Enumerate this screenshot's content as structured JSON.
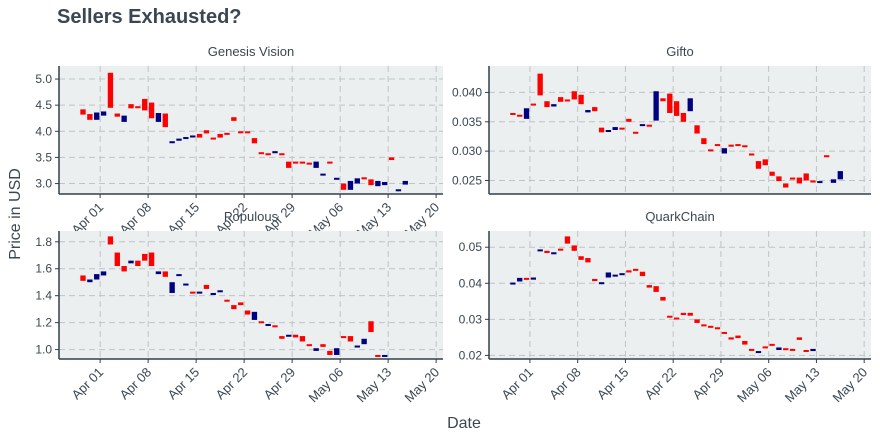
{
  "title": "Sellers Exhausted?",
  "xlabel": "Date",
  "ylabel": "Price in USD",
  "colors": {
    "panel_bg": "#ebeff0",
    "grid": "#bfc4c6",
    "axis": "#333f4b",
    "text": "#3a4752",
    "up": "#000080",
    "down": "#ff0000"
  },
  "chart_data": [
    {
      "type": "candlestick",
      "title": "Genesis Vision",
      "x_ticks": [
        "Apr 01",
        "Apr 08",
        "Apr 15",
        "Apr 22",
        "Apr 29",
        "May 06",
        "May 13",
        "May 20"
      ],
      "y_ticks": [
        "3.0",
        "3.5",
        "4.0",
        "4.5",
        "5.0"
      ],
      "ylim": [
        2.8,
        5.25
      ],
      "x_start": "2018-03-29",
      "candles": [
        [
          "2018-03-29",
          4.42,
          4.32
        ],
        [
          "2018-03-30",
          4.33,
          4.22
        ],
        [
          "2018-03-31",
          4.22,
          4.36
        ],
        [
          "2018-04-01",
          4.3,
          4.38
        ],
        [
          "2018-04-02",
          5.12,
          4.45
        ],
        [
          "2018-04-03",
          4.34,
          4.28
        ],
        [
          "2018-04-04",
          4.18,
          4.3
        ],
        [
          "2018-04-05",
          4.52,
          4.44
        ],
        [
          "2018-04-06",
          4.48,
          4.46
        ],
        [
          "2018-04-07",
          4.62,
          4.4
        ],
        [
          "2018-04-08",
          4.55,
          4.25
        ],
        [
          "2018-04-09",
          4.18,
          4.35
        ],
        [
          "2018-04-10",
          4.34,
          4.08
        ],
        [
          "2018-04-11",
          3.8,
          3.81
        ],
        [
          "2018-04-12",
          3.82,
          3.86
        ],
        [
          "2018-04-13",
          3.86,
          3.89
        ],
        [
          "2018-04-14",
          3.9,
          3.92
        ],
        [
          "2018-04-15",
          3.95,
          3.88
        ],
        [
          "2018-04-16",
          4.02,
          3.96
        ],
        [
          "2018-04-17",
          3.88,
          3.87
        ],
        [
          "2018-04-18",
          3.95,
          3.88
        ],
        [
          "2018-04-19",
          3.97,
          3.96
        ],
        [
          "2018-04-20",
          4.27,
          4.2
        ],
        [
          "2018-04-21",
          4.0,
          3.98
        ],
        [
          "2018-04-22",
          4.0,
          3.98
        ],
        [
          "2018-04-23",
          3.87,
          3.77
        ],
        [
          "2018-04-24",
          3.6,
          3.57
        ],
        [
          "2018-04-25",
          3.58,
          3.57
        ],
        [
          "2018-04-26",
          3.58,
          3.62
        ],
        [
          "2018-04-27",
          3.58,
          3.55
        ],
        [
          "2018-04-28",
          3.42,
          3.3
        ],
        [
          "2018-04-29",
          3.42,
          3.4
        ],
        [
          "2018-04-30",
          3.42,
          3.4
        ],
        [
          "2018-05-01",
          3.4,
          3.38
        ],
        [
          "2018-05-02",
          3.3,
          3.42
        ],
        [
          "2018-05-03",
          3.18,
          3.19
        ],
        [
          "2018-05-04",
          3.42,
          3.4
        ],
        [
          "2018-05-05",
          3.1,
          3.11
        ],
        [
          "2018-05-06",
          3.0,
          2.88
        ],
        [
          "2018-05-07",
          2.88,
          3.05
        ],
        [
          "2018-05-08",
          3.0,
          3.1
        ],
        [
          "2018-05-09",
          3.12,
          3.08
        ],
        [
          "2018-05-10",
          3.08,
          2.97
        ],
        [
          "2018-05-11",
          2.95,
          3.05
        ],
        [
          "2018-05-12",
          2.97,
          3.03
        ],
        [
          "2018-05-13",
          3.5,
          3.45
        ],
        [
          "2018-05-14",
          2.88,
          2.89
        ],
        [
          "2018-05-15",
          2.98,
          3.05
        ]
      ]
    },
    {
      "type": "candlestick",
      "title": "Gifto",
      "x_ticks": [],
      "y_ticks": [
        "0.025",
        "0.030",
        "0.035",
        "0.040"
      ],
      "ylim": [
        0.0227,
        0.0445
      ],
      "x_start": "2018-03-29",
      "candles": [
        [
          "2018-03-29",
          0.0365,
          0.0364
        ],
        [
          "2018-03-30",
          0.0362,
          0.036
        ],
        [
          "2018-03-31",
          0.0355,
          0.0373
        ],
        [
          "2018-04-01",
          0.0381,
          0.038
        ],
        [
          "2018-04-02",
          0.0432,
          0.0395
        ],
        [
          "2018-04-03",
          0.0385,
          0.0375
        ],
        [
          "2018-04-04",
          0.0376,
          0.038
        ],
        [
          "2018-04-05",
          0.0392,
          0.0384
        ],
        [
          "2018-04-06",
          0.0388,
          0.0386
        ],
        [
          "2018-04-07",
          0.0402,
          0.0388
        ],
        [
          "2018-04-08",
          0.0396,
          0.038
        ],
        [
          "2018-04-09",
          0.0366,
          0.037
        ],
        [
          "2018-04-10",
          0.0375,
          0.0368
        ],
        [
          "2018-04-11",
          0.034,
          0.0332
        ],
        [
          "2018-04-12",
          0.0335,
          0.0336
        ],
        [
          "2018-04-13",
          0.0336,
          0.0341
        ],
        [
          "2018-04-14",
          0.034,
          0.0338
        ],
        [
          "2018-04-15",
          0.0355,
          0.035
        ],
        [
          "2018-04-16",
          0.0333,
          0.033
        ],
        [
          "2018-04-17",
          0.0344,
          0.0346
        ],
        [
          "2018-04-18",
          0.0345,
          0.0343
        ],
        [
          "2018-04-19",
          0.0352,
          0.0402
        ],
        [
          "2018-04-20",
          0.039,
          0.0385
        ],
        [
          "2018-04-21",
          0.0398,
          0.0365
        ],
        [
          "2018-04-22",
          0.0385,
          0.036
        ],
        [
          "2018-04-23",
          0.0365,
          0.035
        ],
        [
          "2018-04-24",
          0.0368,
          0.039
        ],
        [
          "2018-04-25",
          0.0344,
          0.033
        ],
        [
          "2018-04-26",
          0.0322,
          0.0312
        ],
        [
          "2018-04-27",
          0.0303,
          0.0301
        ],
        [
          "2018-04-28",
          0.0312,
          0.0311
        ],
        [
          "2018-04-29",
          0.0296,
          0.0305
        ],
        [
          "2018-04-30",
          0.0311,
          0.031
        ],
        [
          "2018-05-01",
          0.0312,
          0.031
        ],
        [
          "2018-05-02",
          0.031,
          0.0307
        ],
        [
          "2018-05-03",
          0.0296,
          0.0295
        ],
        [
          "2018-05-04",
          0.0283,
          0.027
        ],
        [
          "2018-05-05",
          0.0286,
          0.0276
        ],
        [
          "2018-05-06",
          0.0265,
          0.0258
        ],
        [
          "2018-05-07",
          0.0257,
          0.0249
        ],
        [
          "2018-05-08",
          0.0245,
          0.0238
        ],
        [
          "2018-05-09",
          0.0255,
          0.0252
        ],
        [
          "2018-05-10",
          0.0255,
          0.0245
        ],
        [
          "2018-05-11",
          0.0262,
          0.025
        ],
        [
          "2018-05-12",
          0.025,
          0.0248
        ],
        [
          "2018-05-13",
          0.0248,
          0.0249
        ],
        [
          "2018-05-14",
          0.0293,
          0.0292
        ],
        [
          "2018-05-15",
          0.0246,
          0.0252
        ],
        [
          "2018-05-16",
          0.0252,
          0.0266
        ]
      ]
    },
    {
      "type": "candlestick",
      "title": "Populous",
      "x_ticks": [
        "Apr 01",
        "Apr 08",
        "Apr 15",
        "Apr 22",
        "Apr 29",
        "May 06",
        "May 13",
        "May 20"
      ],
      "y_ticks": [
        "1.0",
        "1.2",
        "1.4",
        "1.6",
        "1.8"
      ],
      "ylim": [
        0.93,
        1.88
      ],
      "x_start": "2018-03-29",
      "candles": [
        [
          "2018-03-29",
          1.55,
          1.51
        ],
        [
          "2018-03-30",
          1.5,
          1.52
        ],
        [
          "2018-03-31",
          1.52,
          1.56
        ],
        [
          "2018-04-01",
          1.55,
          1.58
        ],
        [
          "2018-04-02",
          1.84,
          1.78
        ],
        [
          "2018-04-03",
          1.72,
          1.62
        ],
        [
          "2018-04-04",
          1.62,
          1.58
        ],
        [
          "2018-04-05",
          1.64,
          1.66
        ],
        [
          "2018-04-06",
          1.66,
          1.62
        ],
        [
          "2018-04-07",
          1.71,
          1.66
        ],
        [
          "2018-04-08",
          1.72,
          1.62
        ],
        [
          "2018-04-09",
          1.56,
          1.58
        ],
        [
          "2018-04-10",
          1.58,
          1.54
        ],
        [
          "2018-04-11",
          1.42,
          1.5
        ],
        [
          "2018-04-12",
          1.55,
          1.56
        ],
        [
          "2018-04-13",
          1.48,
          1.49
        ],
        [
          "2018-04-14",
          1.43,
          1.42
        ],
        [
          "2018-04-15",
          1.42,
          1.43
        ],
        [
          "2018-04-16",
          1.48,
          1.45
        ],
        [
          "2018-04-17",
          1.41,
          1.42
        ],
        [
          "2018-04-18",
          1.43,
          1.44
        ],
        [
          "2018-04-19",
          1.37,
          1.36
        ],
        [
          "2018-04-20",
          1.33,
          1.3
        ],
        [
          "2018-04-21",
          1.35,
          1.33
        ],
        [
          "2018-04-22",
          1.29,
          1.26
        ],
        [
          "2018-04-23",
          1.22,
          1.28
        ],
        [
          "2018-04-24",
          1.21,
          1.2
        ],
        [
          "2018-04-25",
          1.18,
          1.19
        ],
        [
          "2018-04-26",
          1.18,
          1.17
        ],
        [
          "2018-04-27",
          1.1,
          1.08
        ],
        [
          "2018-04-28",
          1.1,
          1.11
        ],
        [
          "2018-04-29",
          1.11,
          1.09
        ],
        [
          "2018-04-30",
          1.1,
          1.06
        ],
        [
          "2018-05-01",
          1.04,
          1.03
        ],
        [
          "2018-05-02",
          0.99,
          1.01
        ],
        [
          "2018-05-03",
          1.04,
          1.02
        ],
        [
          "2018-05-04",
          0.99,
          0.96
        ],
        [
          "2018-05-05",
          0.96,
          1.01
        ],
        [
          "2018-05-06",
          1.1,
          1.09
        ],
        [
          "2018-05-07",
          1.1,
          1.06
        ],
        [
          "2018-05-08",
          1.02,
          1.03
        ],
        [
          "2018-05-09",
          1.04,
          1.08
        ],
        [
          "2018-05-10",
          1.21,
          1.13
        ],
        [
          "2018-05-11",
          0.96,
          0.95
        ],
        [
          "2018-05-12",
          0.95,
          0.96
        ]
      ]
    },
    {
      "type": "candlestick",
      "title": "QuarkChain",
      "x_ticks": [
        "Apr 01",
        "Apr 08",
        "Apr 15",
        "Apr 22",
        "Apr 29",
        "May 06",
        "May 13",
        "May 20"
      ],
      "y_ticks": [
        "0.02",
        "0.03",
        "0.04",
        "0.05"
      ],
      "ylim": [
        0.019,
        0.0545
      ],
      "x_start": "2018-03-29",
      "candles": [
        [
          "2018-03-29",
          0.0399,
          0.0402
        ],
        [
          "2018-03-30",
          0.0405,
          0.0415
        ],
        [
          "2018-03-31",
          0.0415,
          0.041
        ],
        [
          "2018-04-01",
          0.041,
          0.0416
        ],
        [
          "2018-04-02",
          0.049,
          0.0494
        ],
        [
          "2018-04-03",
          0.049,
          0.0484
        ],
        [
          "2018-04-04",
          0.0484,
          0.0486
        ],
        [
          "2018-04-05",
          0.0496,
          0.0494
        ],
        [
          "2018-04-06",
          0.053,
          0.051
        ],
        [
          "2018-04-07",
          0.0505,
          0.049
        ],
        [
          "2018-04-08",
          0.0475,
          0.0465
        ],
        [
          "2018-04-09",
          0.047,
          0.0458
        ],
        [
          "2018-04-10",
          0.0412,
          0.0406
        ],
        [
          "2018-04-11",
          0.0402,
          0.0403
        ],
        [
          "2018-04-12",
          0.0416,
          0.043
        ],
        [
          "2018-04-13",
          0.0422,
          0.0424
        ],
        [
          "2018-04-14",
          0.0425,
          0.0428
        ],
        [
          "2018-04-15",
          0.0436,
          0.043
        ],
        [
          "2018-04-16",
          0.044,
          0.0438
        ],
        [
          "2018-04-17",
          0.0432,
          0.042
        ],
        [
          "2018-04-18",
          0.0395,
          0.0388
        ],
        [
          "2018-04-19",
          0.0392,
          0.0376
        ],
        [
          "2018-04-20",
          0.0362,
          0.0352
        ],
        [
          "2018-04-21",
          0.031,
          0.0305
        ],
        [
          "2018-04-22",
          0.0305,
          0.0304
        ],
        [
          "2018-04-23",
          0.0318,
          0.0312
        ],
        [
          "2018-04-24",
          0.0318,
          0.031
        ],
        [
          "2018-04-25",
          0.03,
          0.029
        ],
        [
          "2018-04-26",
          0.0286,
          0.0285
        ],
        [
          "2018-04-27",
          0.0282,
          0.0278
        ],
        [
          "2018-04-28",
          0.0278,
          0.0274
        ],
        [
          "2018-04-29",
          0.0265,
          0.026
        ],
        [
          "2018-04-30",
          0.025,
          0.0244
        ],
        [
          "2018-05-01",
          0.0255,
          0.0248
        ],
        [
          "2018-05-02",
          0.024,
          0.023
        ],
        [
          "2018-05-03",
          0.0218,
          0.0213
        ],
        [
          "2018-05-04",
          0.0208,
          0.0212
        ],
        [
          "2018-05-05",
          0.0225,
          0.022
        ],
        [
          "2018-05-06",
          0.0232,
          0.023
        ],
        [
          "2018-05-07",
          0.0215,
          0.0222
        ],
        [
          "2018-05-08",
          0.022,
          0.0218
        ],
        [
          "2018-05-09",
          0.0218,
          0.0214
        ],
        [
          "2018-05-10",
          0.025,
          0.0243
        ],
        [
          "2018-05-11",
          0.0215,
          0.0212
        ],
        [
          "2018-05-12",
          0.0212,
          0.0218
        ]
      ]
    }
  ]
}
